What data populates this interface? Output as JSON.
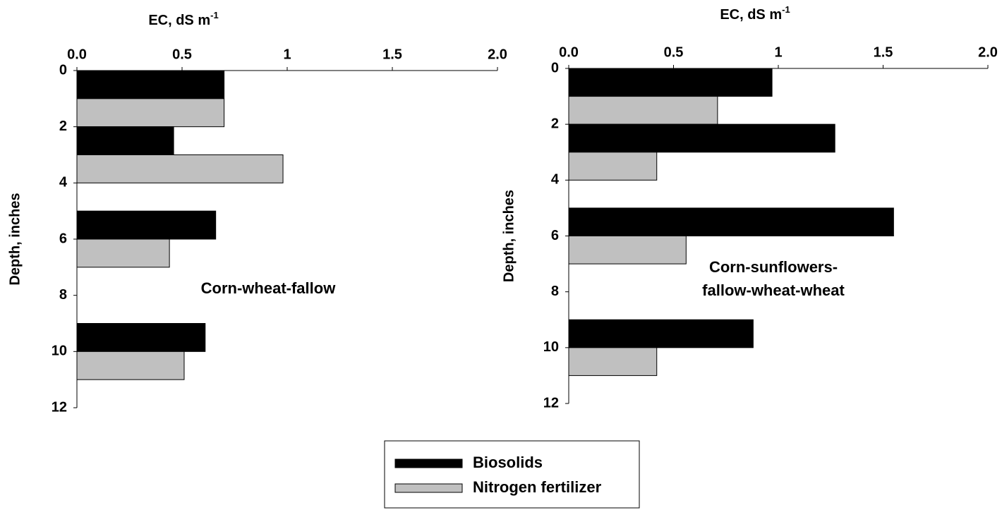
{
  "chart_data": [
    {
      "type": "hbar",
      "xlabel": "EC, dS m",
      "xlabel_sup": "-1",
      "ylabel": "Depth, inches",
      "annotation": [
        "Corn-wheat-fallow"
      ],
      "depth_ranges": [
        [
          0,
          2
        ],
        [
          2,
          4
        ],
        [
          5,
          7
        ],
        [
          9,
          11
        ]
      ],
      "series": [
        {
          "name": "Biosolids",
          "color": "#000000",
          "values": [
            0.7,
            0.46,
            0.66,
            0.61
          ]
        },
        {
          "name": "Nitrogen fertilizer",
          "color": "#c0c0c0",
          "values": [
            0.7,
            0.98,
            0.44,
            0.51
          ]
        }
      ],
      "xlim": [
        0,
        2
      ],
      "xticks": [
        {
          "value": 0,
          "label": "0.0"
        },
        0.5,
        1.0,
        1.5,
        {
          "value": 2,
          "label": "2.0"
        }
      ],
      "ylim": [
        0,
        12
      ],
      "yticks": [
        0,
        2,
        4,
        6,
        8,
        10,
        12
      ],
      "y_inverted": true
    },
    {
      "type": "hbar",
      "xlabel": "EC, dS m",
      "xlabel_sup": "-1",
      "ylabel": "Depth, inches",
      "annotation": [
        "Corn-sunflowers-",
        "fallow-wheat-wheat"
      ],
      "depth_ranges": [
        [
          0,
          2
        ],
        [
          2,
          4
        ],
        [
          5,
          7
        ],
        [
          9,
          11
        ]
      ],
      "series": [
        {
          "color": "#000000",
          "values": [
            0.97,
            1.27,
            1.55,
            0.88
          ]
        },
        {
          "color": "#c0c0c0",
          "values": [
            0.71,
            0.42,
            0.56,
            0.42
          ]
        }
      ],
      "xlim": [
        0,
        2
      ],
      "xticks": [
        {
          "value": 0,
          "label": "0.0"
        },
        0.5,
        1.0,
        1.5,
        {
          "value": 2,
          "label": "2.0"
        }
      ],
      "ylim": [
        0,
        12
      ],
      "yticks": [
        0,
        2,
        4,
        6,
        8,
        10,
        12
      ],
      "y_inverted": true
    }
  ]
}
